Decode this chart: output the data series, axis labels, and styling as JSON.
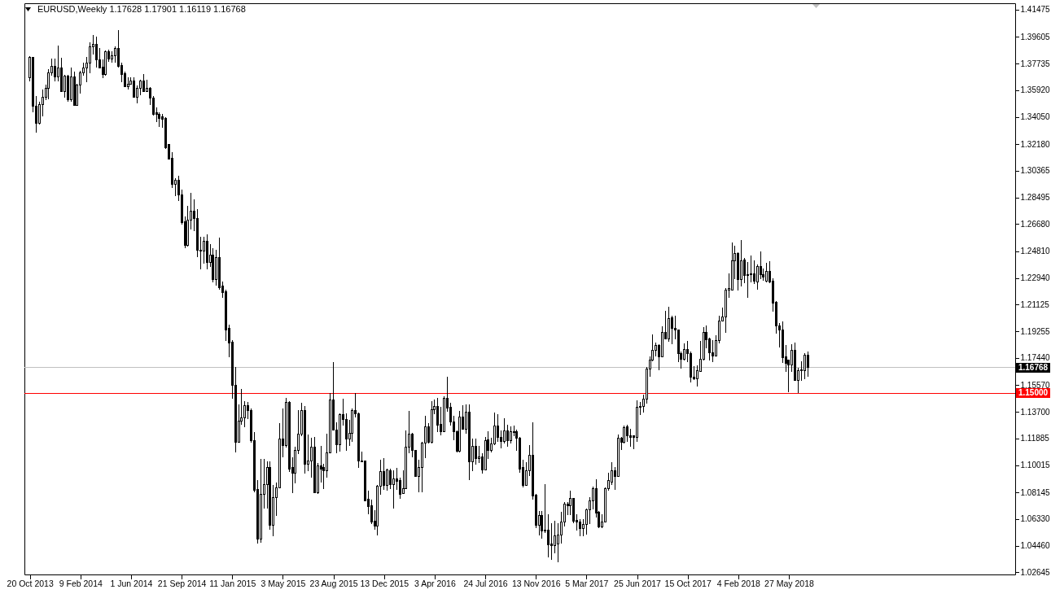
{
  "chart_data": {
    "type": "candlestick",
    "title": "EURUSD,Weekly 1.17628 1.17901 1.16119 1.16768",
    "color": "#000000",
    "x": [
      "2013-10-20",
      "2013-10-27",
      "2013-11-03",
      "2013-11-10",
      "2013-11-17",
      "2013-11-24",
      "2013-12-01",
      "2013-12-08",
      "2013-12-15",
      "2013-12-22",
      "2013-12-29",
      "2014-01-05",
      "2014-01-12",
      "2014-01-19",
      "2014-01-26",
      "2014-02-02",
      "2014-02-09",
      "2014-02-16",
      "2014-02-23",
      "2014-03-02",
      "2014-03-09",
      "2014-03-16",
      "2014-03-23",
      "2014-03-30",
      "2014-04-06",
      "2014-04-13",
      "2014-04-20",
      "2014-04-27",
      "2014-05-04",
      "2014-05-11",
      "2014-05-18",
      "2014-05-25",
      "2014-06-01",
      "2014-06-08",
      "2014-06-15",
      "2014-06-22",
      "2014-06-29",
      "2014-07-06",
      "2014-07-13",
      "2014-07-20",
      "2014-07-27",
      "2014-08-03",
      "2014-08-10",
      "2014-08-17",
      "2014-08-24",
      "2014-08-31",
      "2014-09-07",
      "2014-09-14",
      "2014-09-21",
      "2014-09-28",
      "2014-10-05",
      "2014-10-12",
      "2014-10-19",
      "2014-10-26",
      "2014-11-02",
      "2014-11-09",
      "2014-11-16",
      "2014-11-23",
      "2014-11-30",
      "2014-12-07",
      "2014-12-14",
      "2014-12-21",
      "2014-12-28",
      "2015-01-04",
      "2015-01-11",
      "2015-01-18",
      "2015-01-25",
      "2015-02-01",
      "2015-02-08",
      "2015-02-15",
      "2015-02-22",
      "2015-03-01",
      "2015-03-08",
      "2015-03-15",
      "2015-03-22",
      "2015-03-29",
      "2015-04-05",
      "2015-04-12",
      "2015-04-19",
      "2015-04-26",
      "2015-05-03",
      "2015-05-10",
      "2015-05-17",
      "2015-05-24",
      "2015-05-31",
      "2015-06-07",
      "2015-06-14",
      "2015-06-21",
      "2015-06-28",
      "2015-07-05",
      "2015-07-12",
      "2015-07-19",
      "2015-07-26",
      "2015-08-02",
      "2015-08-09",
      "2015-08-16",
      "2015-08-23",
      "2015-08-30",
      "2015-09-06",
      "2015-09-13",
      "2015-09-20",
      "2015-09-27",
      "2015-10-04",
      "2015-10-11",
      "2015-10-18",
      "2015-10-25",
      "2015-11-01",
      "2015-11-08",
      "2015-11-15",
      "2015-11-22",
      "2015-11-29",
      "2015-12-06",
      "2015-12-13",
      "2015-12-20",
      "2015-12-27",
      "2016-01-03",
      "2016-01-10",
      "2016-01-17",
      "2016-01-24",
      "2016-01-31",
      "2016-02-07",
      "2016-02-14",
      "2016-02-21",
      "2016-02-28",
      "2016-03-06",
      "2016-03-13",
      "2016-03-20",
      "2016-03-27",
      "2016-04-03",
      "2016-04-10",
      "2016-04-17",
      "2016-04-24",
      "2016-05-01",
      "2016-05-08",
      "2016-05-15",
      "2016-05-22",
      "2016-05-29",
      "2016-06-05",
      "2016-06-12",
      "2016-06-19",
      "2016-06-26",
      "2016-07-03",
      "2016-07-10",
      "2016-07-17",
      "2016-07-24",
      "2016-07-31",
      "2016-08-07",
      "2016-08-14",
      "2016-08-21",
      "2016-08-28",
      "2016-09-04",
      "2016-09-11",
      "2016-09-18",
      "2016-09-25",
      "2016-10-02",
      "2016-10-09",
      "2016-10-16",
      "2016-10-23",
      "2016-10-30",
      "2016-11-06",
      "2016-11-13",
      "2016-11-20",
      "2016-11-27",
      "2016-12-04",
      "2016-12-11",
      "2016-12-18",
      "2016-12-25",
      "2017-01-01",
      "2017-01-08",
      "2017-01-15",
      "2017-01-22",
      "2017-01-29",
      "2017-02-05",
      "2017-02-12",
      "2017-02-19",
      "2017-02-26",
      "2017-03-05",
      "2017-03-12",
      "2017-03-19",
      "2017-03-26",
      "2017-04-02",
      "2017-04-09",
      "2017-04-16",
      "2017-04-23",
      "2017-04-30",
      "2017-05-07",
      "2017-05-14",
      "2017-05-21",
      "2017-05-28",
      "2017-06-04",
      "2017-06-11",
      "2017-06-18",
      "2017-06-25",
      "2017-07-02",
      "2017-07-09",
      "2017-07-16",
      "2017-07-23",
      "2017-07-30",
      "2017-08-06",
      "2017-08-13",
      "2017-08-20",
      "2017-08-27",
      "2017-09-03",
      "2017-09-10",
      "2017-09-17",
      "2017-09-24",
      "2017-10-01",
      "2017-10-08",
      "2017-10-15",
      "2017-10-22",
      "2017-10-29",
      "2017-11-05",
      "2017-11-12",
      "2017-11-19",
      "2017-11-26",
      "2017-12-03",
      "2017-12-10",
      "2017-12-17",
      "2017-12-24",
      "2017-12-31",
      "2018-01-07",
      "2018-01-14",
      "2018-01-21",
      "2018-01-28",
      "2018-02-04",
      "2018-02-11",
      "2018-02-18",
      "2018-02-25",
      "2018-03-04",
      "2018-03-11",
      "2018-03-18",
      "2018-03-25",
      "2018-04-01",
      "2018-04-08",
      "2018-04-15",
      "2018-04-22",
      "2018-04-29",
      "2018-05-06",
      "2018-05-13",
      "2018-05-20",
      "2018-05-27",
      "2018-06-03",
      "2018-06-10",
      "2018-06-17",
      "2018-06-24",
      "2018-07-01",
      "2018-07-08"
    ],
    "ohlc": [
      [
        1.368,
        1.3826,
        1.3652,
        1.3815
      ],
      [
        1.3815,
        1.382,
        1.344,
        1.3483
      ],
      [
        1.3483,
        1.3551,
        1.3298,
        1.3361
      ],
      [
        1.3361,
        1.3511,
        1.3354,
        1.3494
      ],
      [
        1.3494,
        1.3596,
        1.341,
        1.3545
      ],
      [
        1.3545,
        1.3629,
        1.3523,
        1.3607
      ],
      [
        1.3607,
        1.3736,
        1.3528,
        1.3713
      ],
      [
        1.3713,
        1.3809,
        1.3691,
        1.3758
      ],
      [
        1.3758,
        1.3809,
        1.3652,
        1.3685
      ],
      [
        1.3685,
        1.3899,
        1.3652,
        1.3747
      ],
      [
        1.3747,
        1.3815,
        1.3579,
        1.3584
      ],
      [
        1.3584,
        1.3697,
        1.3539,
        1.3691
      ],
      [
        1.3691,
        1.3697,
        1.3511,
        1.3523
      ],
      [
        1.3523,
        1.3747,
        1.3511,
        1.3685
      ],
      [
        1.3685,
        1.3719,
        1.3483,
        1.3489
      ],
      [
        1.3489,
        1.3635,
        1.3483,
        1.3629
      ],
      [
        1.3629,
        1.3725,
        1.3568,
        1.3713
      ],
      [
        1.3713,
        1.3781,
        1.3691,
        1.3742
      ],
      [
        1.3742,
        1.382,
        1.3646,
        1.3781
      ],
      [
        1.3781,
        1.3921,
        1.3708,
        1.3893
      ],
      [
        1.3893,
        1.3972,
        1.3837,
        1.391
      ],
      [
        1.391,
        1.3961,
        1.3747,
        1.3803
      ],
      [
        1.3803,
        1.3882,
        1.3742,
        1.3747
      ],
      [
        1.3753,
        1.3803,
        1.3674,
        1.3697
      ],
      [
        1.3697,
        1.3865,
        1.3691,
        1.3859
      ],
      [
        1.3859,
        1.3871,
        1.3787,
        1.3809
      ],
      [
        1.3809,
        1.3859,
        1.3781,
        1.3831
      ],
      [
        1.3831,
        1.3893,
        1.3781,
        1.3882
      ],
      [
        1.3882,
        1.4005,
        1.3747,
        1.3758
      ],
      [
        1.3764,
        1.3781,
        1.3646,
        1.3702
      ],
      [
        1.3708,
        1.3719,
        1.3612,
        1.3618
      ],
      [
        1.3618,
        1.368,
        1.3596,
        1.3635
      ],
      [
        1.3635,
        1.368,
        1.3629,
        1.3652
      ],
      [
        1.3652,
        1.368,
        1.3539,
        1.3545
      ],
      [
        1.3545,
        1.3624,
        1.35,
        1.3607
      ],
      [
        1.3607,
        1.3663,
        1.3556,
        1.3652
      ],
      [
        1.3652,
        1.3702,
        1.3579,
        1.3584
      ],
      [
        1.3584,
        1.3663,
        1.3579,
        1.3607
      ],
      [
        1.3607,
        1.3612,
        1.3489,
        1.3539
      ],
      [
        1.3539,
        1.3551,
        1.3416,
        1.3427
      ],
      [
        1.3438,
        1.3472,
        1.3371,
        1.3427
      ],
      [
        1.3427,
        1.3438,
        1.3337,
        1.3399
      ],
      [
        1.3405,
        1.3427,
        1.3331,
        1.3393
      ],
      [
        1.3399,
        1.3405,
        1.3186,
        1.3193
      ],
      [
        1.3214,
        1.3222,
        1.3113,
        1.3118
      ],
      [
        1.3124,
        1.3163,
        1.2916,
        1.2939
      ],
      [
        1.2941,
        1.2983,
        1.286,
        1.297
      ],
      [
        1.2967,
        1.3,
        1.2826,
        1.2866
      ],
      [
        1.2866,
        1.2905,
        1.2666,
        1.2675
      ],
      [
        1.2681,
        1.272,
        1.2501,
        1.2518
      ],
      [
        1.2518,
        1.2793,
        1.2512,
        1.2692
      ],
      [
        1.2692,
        1.2883,
        1.263,
        1.2759
      ],
      [
        1.2759,
        1.284,
        1.2616,
        1.2708
      ],
      [
        1.2708,
        1.277,
        1.2439,
        1.2486
      ],
      [
        1.248,
        1.2579,
        1.2356,
        1.2486
      ],
      [
        1.248,
        1.2579,
        1.2394,
        1.2551
      ],
      [
        1.2551,
        1.2596,
        1.2356,
        1.24
      ],
      [
        1.24,
        1.253,
        1.2371,
        1.2453
      ],
      [
        1.2453,
        1.2501,
        1.2265,
        1.2283
      ],
      [
        1.2283,
        1.2492,
        1.2244,
        1.2439
      ],
      [
        1.2439,
        1.2574,
        1.2215,
        1.2229
      ],
      [
        1.224,
        1.2273,
        1.2158,
        1.2196
      ],
      [
        1.2201,
        1.2214,
        1.186,
        1.1939
      ],
      [
        1.1945,
        1.1973,
        1.175,
        1.1847
      ],
      [
        1.1853,
        1.1866,
        1.1462,
        1.1552
      ],
      [
        1.1557,
        1.1681,
        1.1091,
        1.1164
      ],
      [
        1.1164,
        1.1423,
        1.1159,
        1.1305
      ],
      [
        1.1305,
        1.1531,
        1.128,
        1.133
      ],
      [
        1.133,
        1.1446,
        1.1266,
        1.1417
      ],
      [
        1.1417,
        1.1441,
        1.1324,
        1.1378
      ],
      [
        1.1383,
        1.1392,
        1.116,
        1.1175
      ],
      [
        1.1175,
        1.1233,
        1.0816,
        1.0831
      ],
      [
        1.0835,
        1.09,
        1.0462,
        1.0496
      ],
      [
        1.0496,
        1.1044,
        1.0468,
        1.0802
      ],
      [
        1.0802,
        1.1046,
        1.0704,
        1.0867
      ],
      [
        1.0867,
        1.1031,
        1.0704,
        1.0985
      ],
      [
        1.0985,
        1.1031,
        1.056,
        1.0586
      ],
      [
        1.0586,
        1.0867,
        1.0513,
        1.0779
      ],
      [
        1.0779,
        1.0882,
        1.0653,
        1.0848
      ],
      [
        1.0848,
        1.1293,
        1.0844,
        1.1185
      ],
      [
        1.1185,
        1.1396,
        1.1059,
        1.114
      ],
      [
        1.114,
        1.1466,
        1.1125,
        1.1434
      ],
      [
        1.1434,
        1.1447,
        1.0957,
        1.0979
      ],
      [
        1.0985,
        1.1059,
        1.0811,
        1.0947
      ],
      [
        1.0947,
        1.1129,
        1.0878,
        1.1103
      ],
      [
        1.1103,
        1.1383,
        1.1078,
        1.1215
      ],
      [
        1.1215,
        1.1434,
        1.1204,
        1.1383
      ],
      [
        1.1383,
        1.141,
        1.0947,
        1.1009
      ],
      [
        1.1009,
        1.1215,
        1.096,
        1.1035
      ],
      [
        1.1035,
        1.1191,
        1.0916,
        1.1129
      ],
      [
        1.1129,
        1.1196,
        1.0811,
        1.0816
      ],
      [
        1.0816,
        1.1017,
        1.0803,
        1.0997
      ],
      [
        1.0997,
        1.1134,
        1.0885,
        1.0979
      ],
      [
        1.0985,
        1.1013,
        1.084,
        1.0966
      ],
      [
        1.0966,
        1.1219,
        1.0919,
        1.1091
      ],
      [
        1.1091,
        1.1499,
        1.1084,
        1.1452
      ],
      [
        1.1452,
        1.1715,
        1.1241,
        1.1247
      ],
      [
        1.1247,
        1.1297,
        1.1084,
        1.1143
      ],
      [
        1.1143,
        1.1359,
        1.1097,
        1.135
      ],
      [
        1.135,
        1.1462,
        1.1278,
        1.1316
      ],
      [
        1.1321,
        1.1359,
        1.1103,
        1.1185
      ],
      [
        1.1185,
        1.1316,
        1.1134,
        1.1222
      ],
      [
        1.1222,
        1.1396,
        1.1166,
        1.1378
      ],
      [
        1.1378,
        1.1499,
        1.1331,
        1.1359
      ],
      [
        1.1359,
        1.1365,
        1.0985,
        1.1031
      ],
      [
        1.1035,
        1.1097,
        1.1024,
        1.1028
      ],
      [
        1.1031,
        1.1035,
        1.0754,
        1.076
      ],
      [
        1.077,
        1.0826,
        1.0666,
        1.0717
      ],
      [
        1.0722,
        1.0766,
        1.0597,
        1.061
      ],
      [
        1.0616,
        1.0691,
        1.056,
        1.0582
      ],
      [
        1.0582,
        1.0867,
        1.0517,
        1.0859
      ],
      [
        1.0859,
        1.1041,
        1.0798,
        1.096
      ],
      [
        1.096,
        1.1054,
        1.0835,
        1.0863
      ],
      [
        1.0863,
        1.0979,
        1.0826,
        1.0972
      ],
      [
        1.0966,
        1.0979,
        1.084,
        1.0872
      ],
      [
        1.0872,
        1.0966,
        1.0704,
        1.091
      ],
      [
        1.091,
        1.0985,
        1.0835,
        1.0891
      ],
      [
        1.0896,
        1.0916,
        1.0773,
        1.0803
      ],
      [
        1.0807,
        1.0966,
        1.0803,
        1.0844
      ],
      [
        1.0844,
        1.1241,
        1.084,
        1.1129
      ],
      [
        1.1129,
        1.1378,
        1.1084,
        1.1219
      ],
      [
        1.1219,
        1.1228,
        1.1059,
        1.1106
      ],
      [
        1.1106,
        1.111,
        1.0923,
        1.0928
      ],
      [
        1.0928,
        1.1041,
        1.0816,
        1.099
      ],
      [
        1.099,
        1.1163,
        1.0816,
        1.1157
      ],
      [
        1.1157,
        1.1346,
        1.1054,
        1.1271
      ],
      [
        1.1271,
        1.1293,
        1.1153,
        1.1159
      ],
      [
        1.1159,
        1.1447,
        1.1153,
        1.1387
      ],
      [
        1.1387,
        1.1458,
        1.1354,
        1.141
      ],
      [
        1.141,
        1.1466,
        1.1233,
        1.1278
      ],
      [
        1.1284,
        1.1406,
        1.1209,
        1.1237
      ],
      [
        1.1237,
        1.1477,
        1.1233,
        1.1466
      ],
      [
        1.1466,
        1.1615,
        1.1372,
        1.1396
      ],
      [
        1.1402,
        1.1434,
        1.1278,
        1.1303
      ],
      [
        1.1303,
        1.1346,
        1.1177,
        1.1233
      ],
      [
        1.1237,
        1.1241,
        1.1091,
        1.1097
      ],
      [
        1.1097,
        1.1378,
        1.1091,
        1.1338
      ],
      [
        1.1338,
        1.1415,
        1.1247,
        1.1252
      ],
      [
        1.1252,
        1.1424,
        1.1219,
        1.1372
      ],
      [
        1.1372,
        1.1424,
        1.09,
        1.1028
      ],
      [
        1.1028,
        1.1185,
        1.096,
        1.1134
      ],
      [
        1.1134,
        1.1185,
        1.1009,
        1.105
      ],
      [
        1.105,
        1.1134,
        1.1017,
        1.1059
      ],
      [
        1.1059,
        1.1087,
        1.0947,
        1.0972
      ],
      [
        1.0972,
        1.12,
        1.0966,
        1.1172
      ],
      [
        1.1177,
        1.1237,
        1.1046,
        1.1103
      ],
      [
        1.1103,
        1.1191,
        1.1091,
        1.1153
      ],
      [
        1.1153,
        1.1365,
        1.1143,
        1.1275
      ],
      [
        1.1275,
        1.1354,
        1.1166,
        1.1196
      ],
      [
        1.1196,
        1.1241,
        1.1121,
        1.1166
      ],
      [
        1.1166,
        1.1327,
        1.1153,
        1.1241
      ],
      [
        1.1241,
        1.1284,
        1.1129,
        1.1172
      ],
      [
        1.1172,
        1.1271,
        1.1153,
        1.1232
      ],
      [
        1.1233,
        1.1278,
        1.1204,
        1.1228
      ],
      [
        1.1232,
        1.1247,
        1.1103,
        1.1191
      ],
      [
        1.1191,
        1.1196,
        1.0953,
        1.0979
      ],
      [
        1.0985,
        1.1041,
        1.0848,
        1.0863
      ],
      [
        1.0863,
        1.1022,
        1.0859,
        1.0966
      ],
      [
        1.0966,
        1.114,
        1.0928,
        1.1073
      ],
      [
        1.1073,
        1.1297,
        1.0766,
        1.0792
      ],
      [
        1.0798,
        1.0803,
        1.0567,
        1.0586
      ],
      [
        1.0586,
        1.0685,
        1.0517,
        1.0657
      ],
      [
        1.0657,
        1.0685,
        1.0498,
        1.0548
      ],
      [
        1.0554,
        1.0872,
        1.0535,
        1.0548
      ],
      [
        1.0554,
        1.0666,
        1.0367,
        1.0455
      ],
      [
        1.0461,
        1.0601,
        1.0348,
        1.0447
      ],
      [
        1.0447,
        1.062,
        1.0395,
        1.0517
      ],
      [
        1.0461,
        1.0601,
        1.0335,
        1.0522
      ],
      [
        1.0522,
        1.068,
        1.0461,
        1.061
      ],
      [
        1.061,
        1.075,
        1.0579,
        1.0736
      ],
      [
        1.0736,
        1.0747,
        1.0661,
        1.0722
      ],
      [
        1.0722,
        1.0826,
        1.0661,
        1.0773
      ],
      [
        1.0773,
        1.0779,
        1.0601,
        1.0616
      ],
      [
        1.062,
        1.0666,
        1.0552,
        1.061
      ],
      [
        1.061,
        1.0629,
        1.0511,
        1.0564
      ],
      [
        1.0564,
        1.0629,
        1.0511,
        1.0597
      ],
      [
        1.0597,
        1.0704,
        1.0522,
        1.0698
      ],
      [
        1.0698,
        1.0784,
        1.0597,
        1.076
      ],
      [
        1.076,
        1.0854,
        1.0698,
        1.0844
      ],
      [
        1.0844,
        1.0904,
        1.0642,
        1.0672
      ],
      [
        1.0676,
        1.0685,
        1.0567,
        1.0579
      ],
      [
        1.0579,
        1.0666,
        1.0567,
        1.061
      ],
      [
        1.061,
        1.0848,
        1.0606,
        1.0844
      ],
      [
        1.0844,
        1.0953,
        1.0829,
        1.0896
      ],
      [
        1.0885,
        1.1022,
        1.0867,
        1.0966
      ],
      [
        1.0966,
        1.099,
        1.0835,
        1.0928
      ],
      [
        1.0928,
        1.1215,
        1.0923,
        1.1191
      ],
      [
        1.1191,
        1.1196,
        1.1106,
        1.1163
      ],
      [
        1.1163,
        1.1278,
        1.1153,
        1.1265
      ],
      [
        1.1271,
        1.1284,
        1.1163,
        1.1204
      ],
      [
        1.1209,
        1.1256,
        1.1129,
        1.1196
      ],
      [
        1.1204,
        1.1209,
        1.1115,
        1.1196
      ],
      [
        1.1196,
        1.1452,
        1.1166,
        1.1402
      ],
      [
        1.1402,
        1.1439,
        1.135,
        1.1406
      ],
      [
        1.1406,
        1.149,
        1.1368,
        1.1458
      ],
      [
        1.1458,
        1.1682,
        1.1428,
        1.1668
      ],
      [
        1.1668,
        1.1752,
        1.1612,
        1.1727
      ],
      [
        1.1727,
        1.1907,
        1.172,
        1.1795
      ],
      [
        1.1795,
        1.1851,
        1.1752,
        1.1827
      ],
      [
        1.1832,
        1.184,
        1.1658,
        1.1752
      ],
      [
        1.1752,
        1.1963,
        1.1746,
        1.1921
      ],
      [
        1.1921,
        1.207,
        1.1873,
        1.1877
      ],
      [
        1.1877,
        1.2095,
        1.1855,
        1.2014
      ],
      [
        1.2019,
        1.2033,
        1.184,
        1.1945
      ],
      [
        1.1949,
        1.2033,
        1.1873,
        1.1934
      ],
      [
        1.1934,
        1.1939,
        1.1715,
        1.1771
      ],
      [
        1.1776,
        1.1789,
        1.1668,
        1.1733
      ],
      [
        1.1733,
        1.1845,
        1.1724,
        1.1803
      ],
      [
        1.1803,
        1.1859,
        1.1715,
        1.1771
      ],
      [
        1.1771,
        1.1789,
        1.1574,
        1.1608
      ],
      [
        1.1612,
        1.1686,
        1.1589,
        1.1597
      ],
      [
        1.1602,
        1.169,
        1.1546,
        1.1653
      ],
      [
        1.1649,
        1.1859,
        1.1645,
        1.1733
      ],
      [
        1.1733,
        1.1955,
        1.1727,
        1.1921
      ],
      [
        1.1921,
        1.1967,
        1.1808,
        1.187
      ],
      [
        1.1873,
        1.1883,
        1.1724,
        1.178
      ],
      [
        1.178,
        1.1864,
        1.1715,
        1.1758
      ],
      [
        1.1758,
        1.1902,
        1.1752,
        1.1864
      ],
      [
        1.1864,
        1.2033,
        1.1845,
        1.2001
      ],
      [
        1.2001,
        1.2089,
        1.1995,
        1.2027
      ],
      [
        1.2027,
        1.2225,
        1.1915,
        1.2214
      ],
      [
        1.2214,
        1.2327,
        1.2158,
        1.2225
      ],
      [
        1.2214,
        1.2538,
        1.2209,
        1.2416
      ],
      [
        1.2416,
        1.2519,
        1.2286,
        1.2463
      ],
      [
        1.2463,
        1.2473,
        1.2207,
        1.2286
      ],
      [
        1.2286,
        1.2557,
        1.2238,
        1.2416
      ],
      [
        1.242,
        1.2435,
        1.2258,
        1.2314
      ],
      [
        1.2319,
        1.2407,
        1.2158,
        1.2314
      ],
      [
        1.2319,
        1.245,
        1.2267,
        1.2323
      ],
      [
        1.2323,
        1.2416,
        1.2252,
        1.2276
      ],
      [
        1.2267,
        1.2388,
        1.2214,
        1.2375
      ],
      [
        1.2375,
        1.2476,
        1.2286,
        1.2319
      ],
      [
        1.2319,
        1.236,
        1.2276,
        1.2304
      ],
      [
        1.2276,
        1.2401,
        1.2263,
        1.2338
      ],
      [
        1.2338,
        1.2412,
        1.2258,
        1.227
      ],
      [
        1.2276,
        1.2295,
        1.2061,
        1.212
      ],
      [
        1.2126,
        1.2136,
        1.1911,
        1.1967
      ],
      [
        1.1967,
        1.1986,
        1.1817,
        1.1939
      ],
      [
        1.1939,
        1.1995,
        1.1709,
        1.1746
      ],
      [
        1.1752,
        1.1832,
        1.1649,
        1.1705
      ],
      [
        1.1727,
        1.1733,
        1.1508,
        1.1696
      ],
      [
        1.1696,
        1.1836,
        1.1649,
        1.1795
      ],
      [
        1.1795,
        1.1851,
        1.1584,
        1.1589
      ],
      [
        1.1589,
        1.1677,
        1.1503,
        1.1658
      ],
      [
        1.1653,
        1.172,
        1.1584,
        1.1664
      ],
      [
        1.1653,
        1.1776,
        1.1597,
        1.1763
      ],
      [
        1.17628,
        1.17901,
        1.16119,
        1.16768
      ]
    ],
    "xlim": [
      "2013-10-17",
      "2019-10-01"
    ],
    "xticks": [
      {
        "value": "2013-10-20",
        "label": "20 Oct 2013"
      },
      {
        "value": "2014-02-09",
        "label": "9 Feb 2014"
      },
      {
        "value": "2014-06-01",
        "label": "1 Jun 2014"
      },
      {
        "value": "2014-09-21",
        "label": "21 Sep 2014"
      },
      {
        "value": "2015-01-11",
        "label": "11 Jan 2015"
      },
      {
        "value": "2015-05-03",
        "label": "3 May 2015"
      },
      {
        "value": "2015-08-23",
        "label": "23 Aug 2015"
      },
      {
        "value": "2015-12-13",
        "label": "13 Dec 2015"
      },
      {
        "value": "2016-04-03",
        "label": "3 Apr 2016"
      },
      {
        "value": "2016-07-24",
        "label": "24 Jul 2016"
      },
      {
        "value": "2016-11-13",
        "label": "13 Nov 2016"
      },
      {
        "value": "2017-03-05",
        "label": "5 Mar 2017"
      },
      {
        "value": "2017-06-25",
        "label": "25 Jun 2017"
      },
      {
        "value": "2017-10-15",
        "label": "15 Oct 2017"
      },
      {
        "value": "2018-02-04",
        "label": "4 Feb 2018"
      },
      {
        "value": "2018-05-27",
        "label": "27 May 2018"
      }
    ],
    "ylim": [
      1.0249,
      1.4191
    ],
    "yticks": [
      1.41475,
      1.39605,
      1.37735,
      {
        "value": 1.3592,
        "label": "1.35920"
      },
      {
        "value": 1.3405,
        "label": "1.34050"
      },
      {
        "value": 1.3218,
        "label": "1.32180"
      },
      1.30365,
      1.28495,
      {
        "value": 1.2668,
        "label": "1.26680"
      },
      {
        "value": 1.2481,
        "label": "1.24810"
      },
      {
        "value": 1.2294,
        "label": "1.22940"
      },
      1.21125,
      1.19255,
      {
        "value": 1.1744,
        "label": "1.17440"
      },
      {
        "value": 1.1557,
        "label": "1.15570"
      },
      {
        "value": 1.137,
        "label": "1.13700"
      },
      1.11885,
      1.10015,
      1.08145,
      {
        "value": 1.0633,
        "label": "1.06330"
      },
      {
        "value": 1.0446,
        "label": "1.04460"
      },
      1.02645
    ],
    "ref_lines": [
      {
        "axis": "y",
        "value": 1.16768,
        "label": "1.16768",
        "color": "#c0c0c0"
      },
      {
        "axis": "y",
        "value": 1.15,
        "label": "1.15000",
        "color": "#ff0000"
      }
    ]
  }
}
